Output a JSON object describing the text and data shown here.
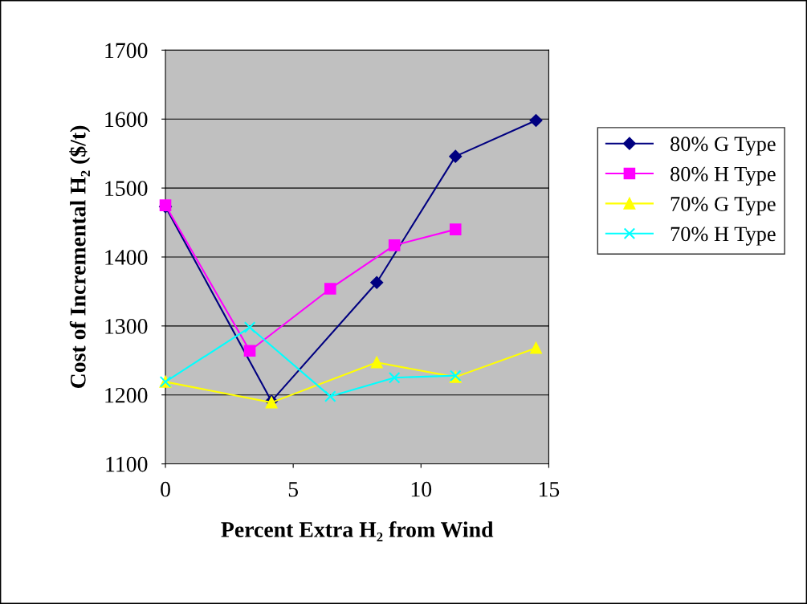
{
  "chart_data": {
    "type": "line",
    "xlabel": "Percent Extra H₂ from Wind",
    "ylabel": "Cost of Incremental H₂ ($/t)",
    "xlim": [
      0,
      15
    ],
    "xticks": [
      0,
      5,
      10,
      15
    ],
    "ylim": [
      1100,
      1700
    ],
    "yticks": [
      1100,
      1200,
      1300,
      1400,
      1500,
      1600,
      1700
    ],
    "grid": "y",
    "legend": "right",
    "series": [
      {
        "name": "80% G Type",
        "color": "#000080",
        "marker": "diamond",
        "x": [
          0,
          4.15,
          8.27,
          11.35,
          14.5
        ],
        "values": [
          1473,
          1191,
          1363,
          1546,
          1598
        ]
      },
      {
        "name": "80% H Type",
        "color": "#ff00ff",
        "marker": "square",
        "x": [
          0,
          3.3,
          6.45,
          8.96,
          11.35
        ],
        "values": [
          1475,
          1264,
          1354,
          1417,
          1440
        ]
      },
      {
        "name": "70% G Type",
        "color": "#ffff00",
        "marker": "triangle",
        "x": [
          0,
          4.15,
          8.27,
          11.35,
          14.5
        ],
        "values": [
          1219,
          1189,
          1247,
          1226,
          1268
        ]
      },
      {
        "name": "70% H Type",
        "color": "#00ffff",
        "marker": "cross",
        "x": [
          0,
          3.3,
          6.45,
          8.96,
          11.35
        ],
        "values": [
          1219,
          1298,
          1198,
          1225,
          1228
        ]
      }
    ]
  }
}
